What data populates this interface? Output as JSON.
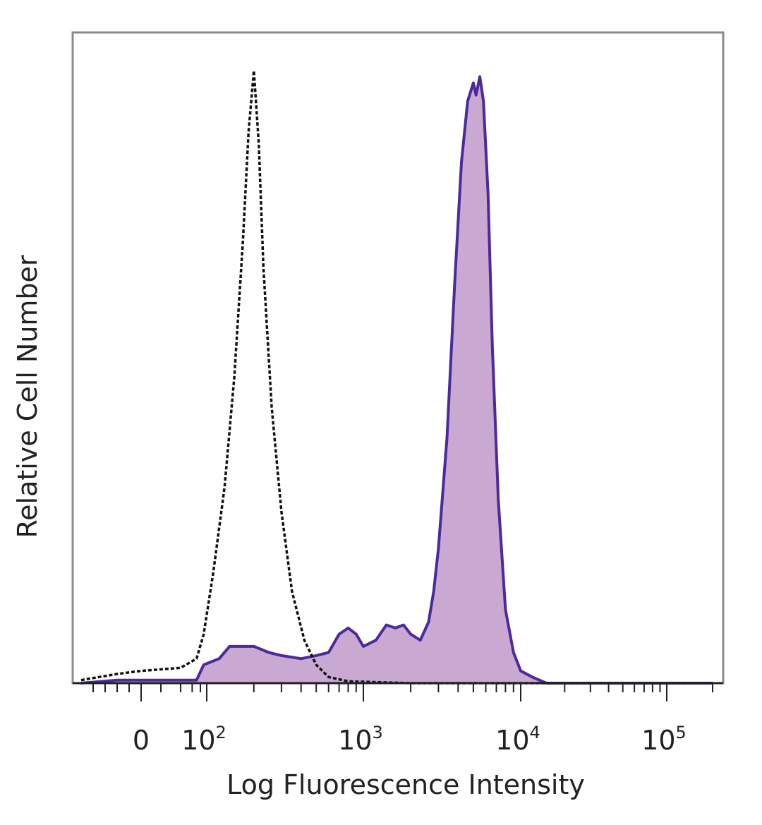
{
  "chart_data": {
    "type": "area",
    "xlabel": "Log Fluorescence Intensity",
    "ylabel": "Relative Cell Number",
    "x_scale": "logicle",
    "xlim": [
      -100,
      200000
    ],
    "ylim": [
      0,
      100
    ],
    "grid": false,
    "legend": "none",
    "x_tick_labels": [
      {
        "value": 0,
        "base": "0",
        "exp": ""
      },
      {
        "value": 100,
        "base": "10",
        "exp": "2"
      },
      {
        "value": 1000,
        "base": "10",
        "exp": "3"
      },
      {
        "value": 10000,
        "base": "10",
        "exp": "4"
      },
      {
        "value": 100000,
        "base": "10",
        "exp": "5"
      }
    ],
    "series": [
      {
        "style": "dashed-outline",
        "color": "#111111",
        "x": [
          -100,
          -40,
          0,
          40,
          70,
          90,
          110,
          130,
          150,
          170,
          185,
          200,
          215,
          230,
          260,
          300,
          350,
          420,
          500,
          600,
          800,
          2000,
          200000
        ],
        "y": [
          0.5,
          1.5,
          2,
          2.5,
          4,
          8,
          18,
          32,
          50,
          72,
          90,
          100,
          88,
          68,
          45,
          28,
          15,
          7,
          3,
          1,
          0.3,
          0,
          0
        ]
      },
      {
        "style": "filled",
        "color": "#4b2a9b",
        "fill": "#c9a8d2",
        "x": [
          -100,
          -40,
          0,
          40,
          70,
          90,
          120,
          140,
          170,
          200,
          250,
          300,
          400,
          500,
          600,
          700,
          800,
          900,
          1000,
          1200,
          1400,
          1600,
          1800,
          2000,
          2300,
          2600,
          2800,
          3000,
          3400,
          3800,
          4200,
          4600,
          5000,
          5200,
          5500,
          5800,
          6200,
          6600,
          7200,
          8000,
          9000,
          10000,
          12000,
          15000,
          20000,
          200000
        ],
        "y": [
          0,
          0.5,
          0.5,
          0.5,
          0.5,
          3,
          4,
          6,
          6,
          6,
          5,
          4.5,
          4,
          4.5,
          5,
          8,
          9,
          8,
          6,
          7,
          9.5,
          9,
          9.5,
          8,
          7,
          10,
          15,
          22,
          40,
          65,
          85,
          95,
          98,
          96,
          99,
          95,
          80,
          55,
          30,
          12,
          5,
          2,
          1,
          0,
          0,
          0
        ]
      }
    ]
  }
}
